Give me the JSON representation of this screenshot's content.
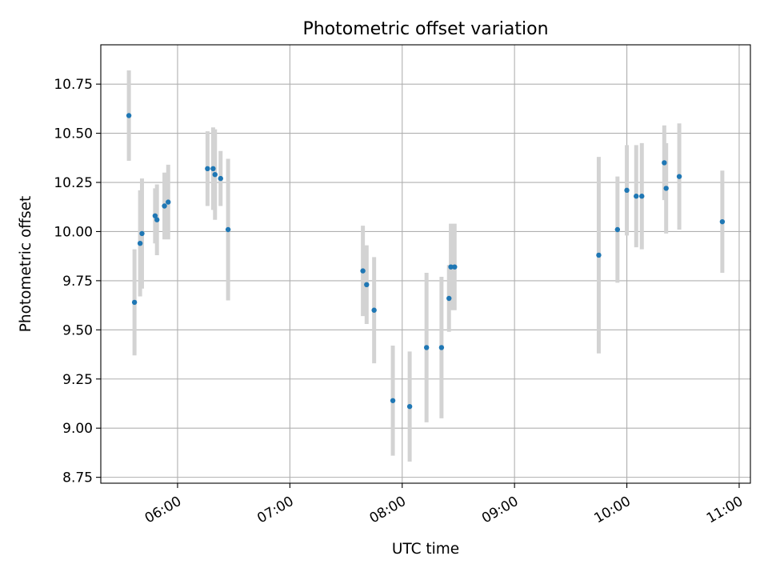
{
  "chart_data": {
    "type": "scatter",
    "title": "Photometric offset variation",
    "xlabel": "UTC time",
    "ylabel": "Photometric offset",
    "grid": true,
    "ylim": [
      8.72,
      10.95
    ],
    "xlim": [
      "05:19",
      "11:06"
    ],
    "x_ticks": [
      "06:00",
      "07:00",
      "08:00",
      "09:00",
      "10:00",
      "11:00"
    ],
    "y_ticks": [
      "8.75",
      "9.00",
      "9.25",
      "9.50",
      "9.75",
      "10.00",
      "10.25",
      "10.50",
      "10.75"
    ],
    "colors": {
      "point": "#1f77b4",
      "errorbar": "#d3d3d3",
      "grid": "#b0b0b0"
    },
    "series": [
      {
        "points": [
          {
            "x": "05:34",
            "y": 10.59,
            "err": 0.23
          },
          {
            "x": "05:37",
            "y": 9.64,
            "err": 0.27
          },
          {
            "x": "05:40",
            "y": 9.94,
            "err": 0.27
          },
          {
            "x": "05:41",
            "y": 9.99,
            "err": 0.28
          },
          {
            "x": "05:48",
            "y": 10.08,
            "err": 0.14
          },
          {
            "x": "05:49",
            "y": 10.06,
            "err": 0.18
          },
          {
            "x": "05:53",
            "y": 10.13,
            "err": 0.17
          },
          {
            "x": "05:55",
            "y": 10.15,
            "err": 0.19
          },
          {
            "x": "06:16",
            "y": 10.32,
            "err": 0.19
          },
          {
            "x": "06:19",
            "y": 10.32,
            "err": 0.21
          },
          {
            "x": "06:20",
            "y": 10.29,
            "err": 0.23
          },
          {
            "x": "06:23",
            "y": 10.27,
            "err": 0.14
          },
          {
            "x": "06:27",
            "y": 10.01,
            "err": 0.36
          },
          {
            "x": "07:39",
            "y": 9.8,
            "err": 0.23
          },
          {
            "x": "07:41",
            "y": 9.73,
            "err": 0.2
          },
          {
            "x": "07:45",
            "y": 9.6,
            "err": 0.27
          },
          {
            "x": "07:55",
            "y": 9.14,
            "err": 0.28
          },
          {
            "x": "08:04",
            "y": 9.11,
            "err": 0.28
          },
          {
            "x": "08:13",
            "y": 9.41,
            "err": 0.38
          },
          {
            "x": "08:21",
            "y": 9.41,
            "err": 0.36
          },
          {
            "x": "08:25",
            "y": 9.66,
            "err": 0.17
          },
          {
            "x": "08:26",
            "y": 9.82,
            "err": 0.22
          },
          {
            "x": "08:28",
            "y": 9.82,
            "err": 0.22
          },
          {
            "x": "09:45",
            "y": 9.88,
            "err": 0.5
          },
          {
            "x": "09:55",
            "y": 10.01,
            "err": 0.27
          },
          {
            "x": "10:00",
            "y": 10.21,
            "err": 0.23
          },
          {
            "x": "10:05",
            "y": 10.18,
            "err": 0.26
          },
          {
            "x": "10:08",
            "y": 10.18,
            "err": 0.27
          },
          {
            "x": "10:20",
            "y": 10.35,
            "err": 0.19
          },
          {
            "x": "10:21",
            "y": 10.22,
            "err": 0.23
          },
          {
            "x": "10:28",
            "y": 10.28,
            "err": 0.27
          },
          {
            "x": "10:51",
            "y": 10.05,
            "err": 0.26
          }
        ]
      }
    ]
  }
}
